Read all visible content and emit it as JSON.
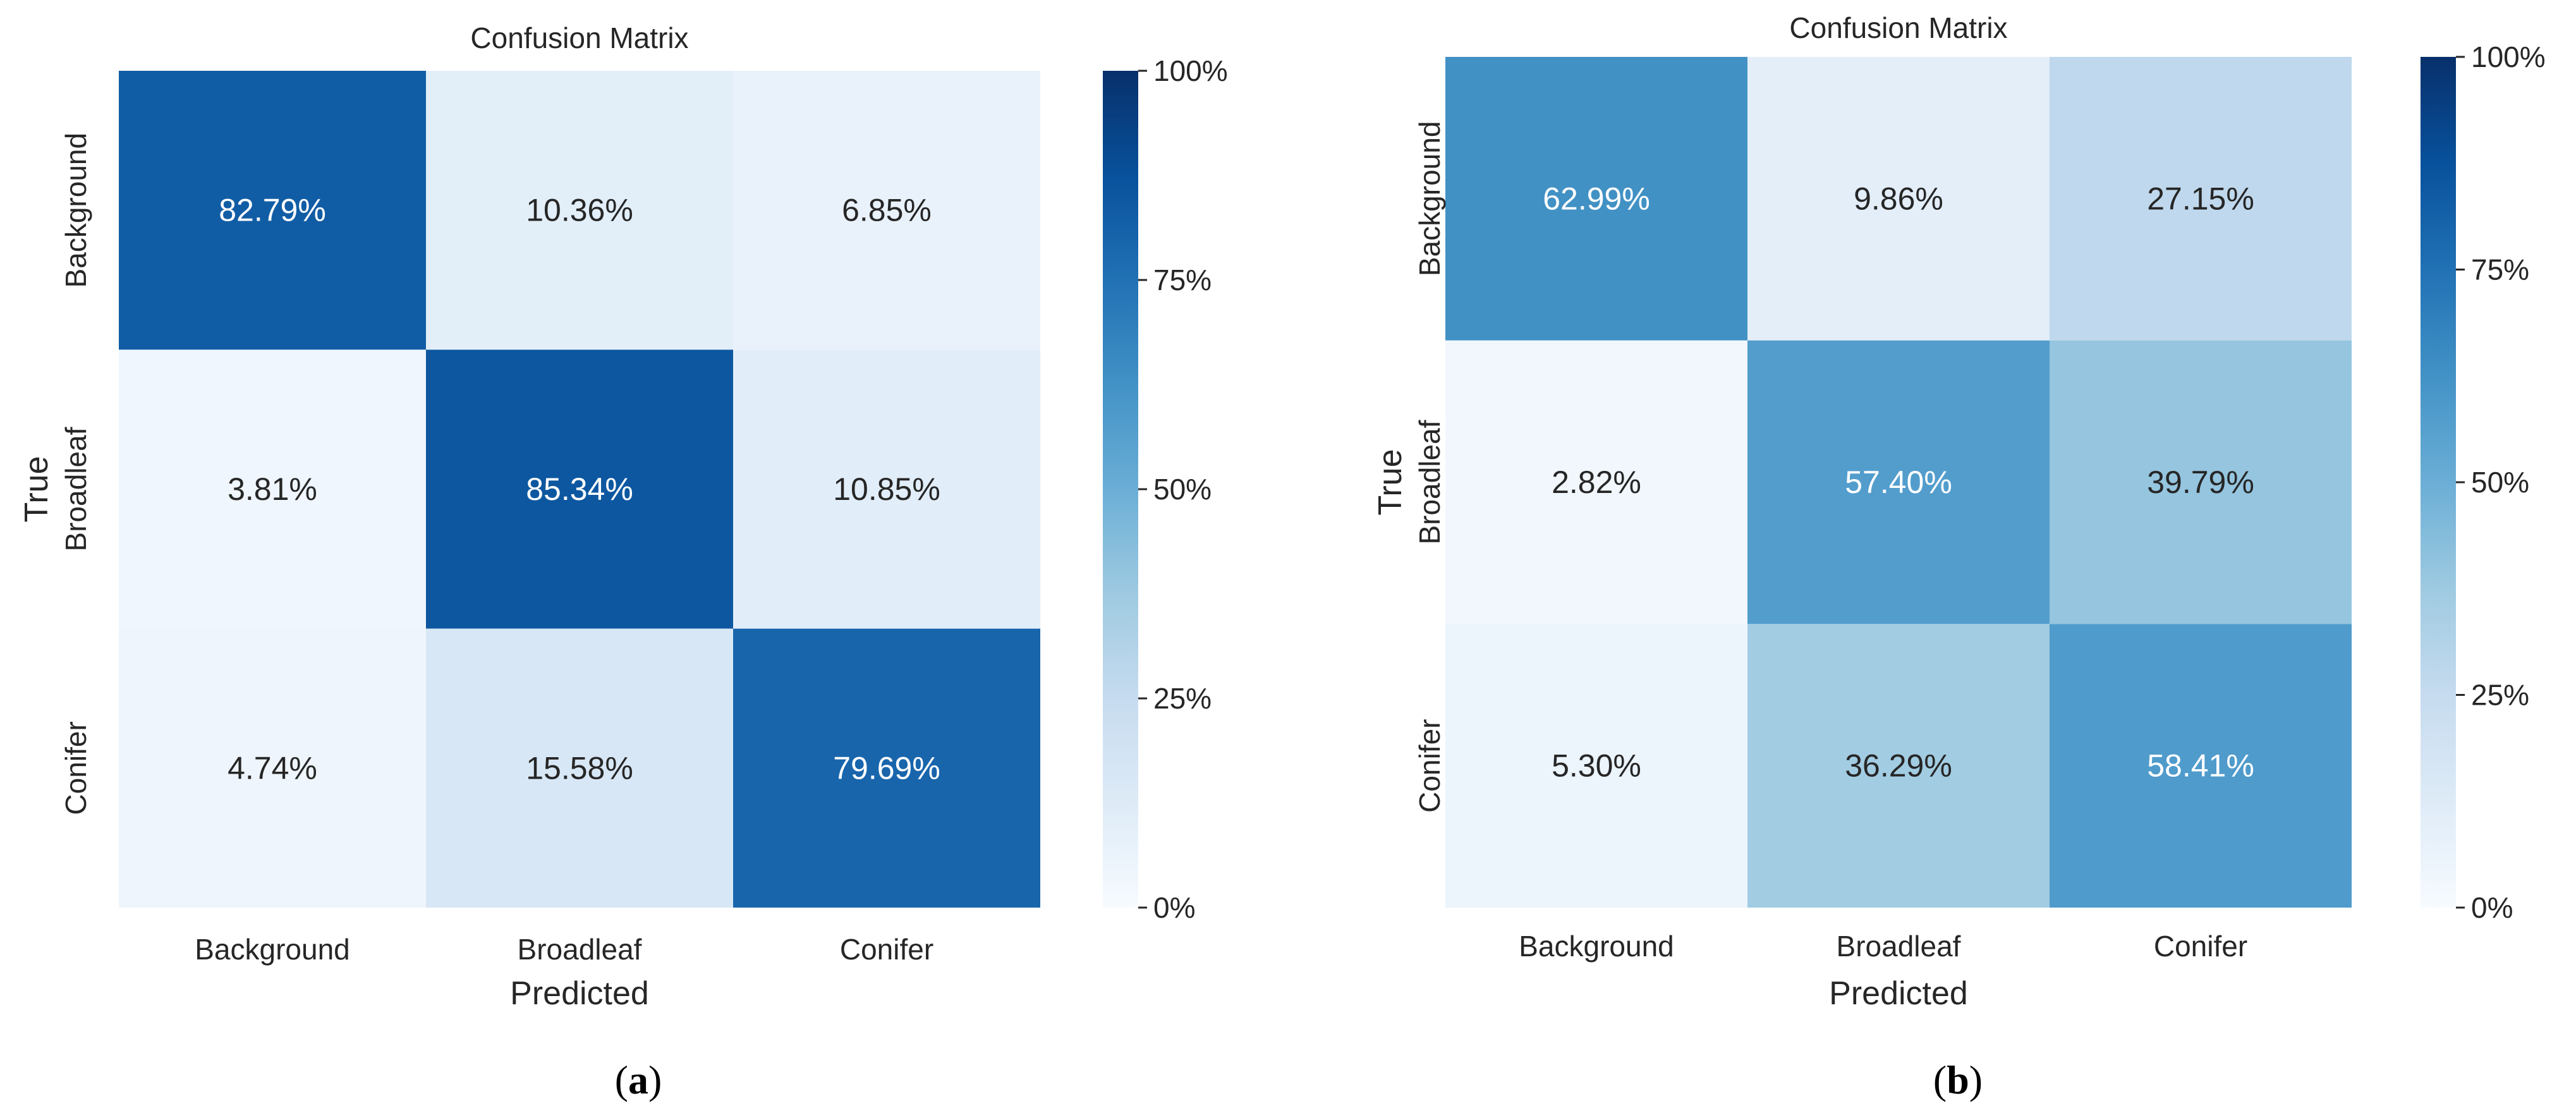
{
  "chart_data": [
    {
      "type": "heatmap",
      "panel_label": "a",
      "title": "Confusion Matrix",
      "xlabel": "Predicted",
      "ylabel": "True",
      "x_categories": [
        "Background",
        "Broadleaf",
        "Conifer"
      ],
      "y_categories": [
        "Background",
        "Broadleaf",
        "Conifer"
      ],
      "values": [
        [
          82.79,
          10.36,
          6.85
        ],
        [
          3.81,
          85.34,
          10.85
        ],
        [
          4.74,
          15.58,
          79.69
        ]
      ],
      "cell_labels": [
        [
          "82.79%",
          "10.36%",
          "6.85%"
        ],
        [
          "3.81%",
          "85.34%",
          "10.85%"
        ],
        [
          "4.74%",
          "15.58%",
          "79.69%"
        ]
      ],
      "colorbar": {
        "range": [
          0,
          100
        ],
        "ticks": [
          0,
          25,
          50,
          75,
          100
        ],
        "tick_labels": [
          "0%",
          "25%",
          "50%",
          "75%",
          "100%"
        ]
      },
      "colormap": "Blues"
    },
    {
      "type": "heatmap",
      "panel_label": "b",
      "title": "Confusion Matrix",
      "xlabel": "Predicted",
      "ylabel": "True",
      "x_categories": [
        "Background",
        "Broadleaf",
        "Conifer"
      ],
      "y_categories": [
        "Background",
        "Broadleaf",
        "Conifer"
      ],
      "values": [
        [
          62.99,
          9.86,
          27.15
        ],
        [
          2.82,
          57.4,
          39.79
        ],
        [
          5.3,
          36.29,
          58.41
        ]
      ],
      "cell_labels": [
        [
          "62.99%",
          "9.86%",
          "27.15%"
        ],
        [
          "2.82%",
          "57.40%",
          "39.79%"
        ],
        [
          "5.30%",
          "36.29%",
          "58.41%"
        ]
      ],
      "colorbar": {
        "range": [
          0,
          100
        ],
        "ticks": [
          0,
          25,
          50,
          75,
          100
        ],
        "tick_labels": [
          "0%",
          "25%",
          "50%",
          "75%",
          "100%"
        ]
      },
      "colormap": "Blues"
    }
  ],
  "colors": {
    "text_dark": "#262626",
    "text_light": "#ffffff",
    "background": "#ffffff",
    "blues_stops": [
      "#f7fbff",
      "#deebf7",
      "#c6dbef",
      "#9ecae1",
      "#6baed6",
      "#4292c6",
      "#2171b5",
      "#08519c",
      "#08306b"
    ]
  }
}
